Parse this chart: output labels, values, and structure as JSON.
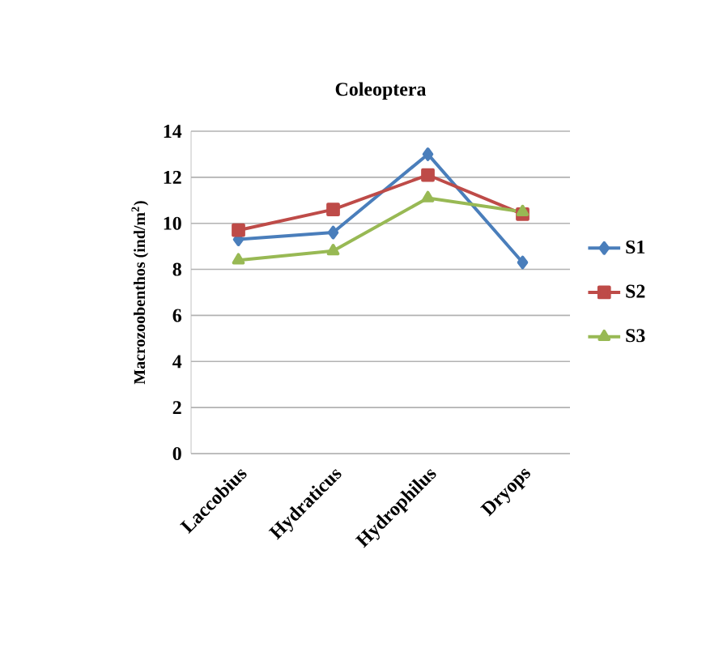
{
  "chart_data": {
    "type": "line",
    "title": "Coleoptera",
    "ylabel": "Macrozoobenthos (ind/m$^{2}$)",
    "categories": [
      "Laccobius",
      "Hydraticus",
      "Hydrophilus",
      "Dryops"
    ],
    "series": [
      {
        "name": "S1",
        "color": "#4a7ebb",
        "marker": "diamond",
        "values": [
          9.3,
          9.6,
          13.0,
          8.3
        ]
      },
      {
        "name": "S2",
        "color": "#be4b48",
        "marker": "square",
        "values": [
          9.7,
          10.6,
          12.1,
          10.4
        ]
      },
      {
        "name": "S3",
        "color": "#98b954",
        "marker": "triangle",
        "values": [
          8.4,
          8.8,
          11.1,
          10.5
        ]
      }
    ],
    "ylim": [
      0,
      14
    ],
    "yticks": [
      0,
      2,
      4,
      6,
      8,
      10,
      12,
      14
    ],
    "grid": "y",
    "legend": "right",
    "line_style": "solid"
  }
}
